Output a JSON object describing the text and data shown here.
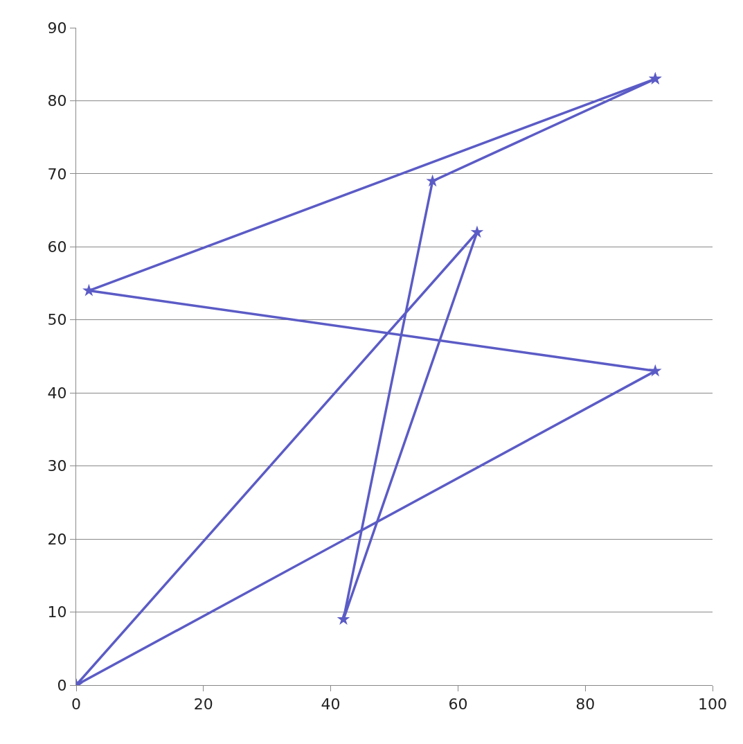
{
  "chart_data": {
    "type": "line",
    "series": [
      {
        "color": "#5b5bc6",
        "x": [
          0,
          63,
          42,
          56,
          91
        ],
        "values": [
          0,
          62,
          9,
          69,
          83
        ]
      },
      {
        "color": "#5b5bc6",
        "x": [
          91,
          2,
          91,
          0
        ],
        "values": [
          83,
          54,
          43,
          0
        ]
      }
    ],
    "xlim": [
      0,
      100
    ],
    "xticks": [
      0,
      20,
      40,
      60,
      80,
      100
    ],
    "ylim": [
      0,
      90
    ],
    "yticks": [
      0,
      10,
      20,
      30,
      40,
      50,
      60,
      70,
      80,
      90
    ],
    "grid": "y",
    "marker": "star",
    "line_style": "solid"
  }
}
